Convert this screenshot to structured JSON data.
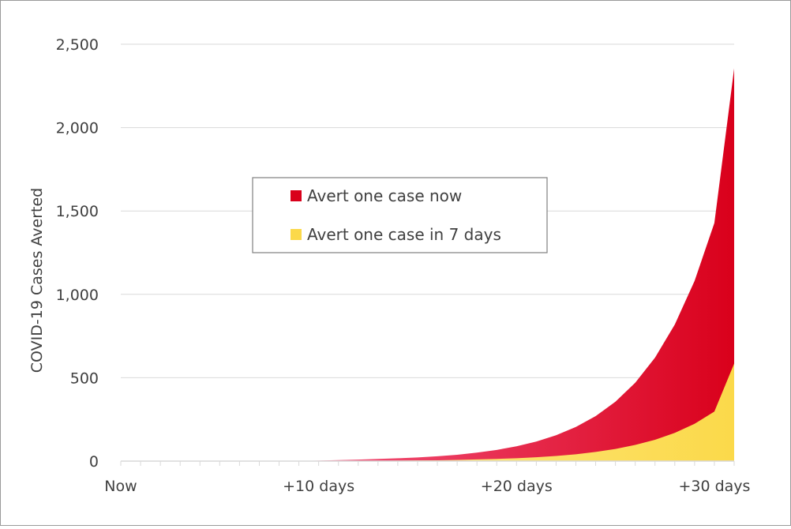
{
  "chart_data": {
    "type": "area",
    "ylabel": "COVID-19 Cases Averted",
    "xlabel": "",
    "ylim": [
      0,
      2500
    ],
    "y_ticks": [
      "0",
      "500",
      "1,000",
      "1,500",
      "2,000",
      "2,500"
    ],
    "y_tick_values": [
      0,
      500,
      1000,
      1500,
      2000,
      2500
    ],
    "x_ticks": [
      "Now",
      "+10 days",
      "+20 days",
      "+30 days"
    ],
    "x_tick_values": [
      0,
      10,
      20,
      30
    ],
    "xlim": [
      0,
      31
    ],
    "grid": "horizontal",
    "legend_position": "center",
    "series": [
      {
        "name": "Avert one case now",
        "color": "#d9001b",
        "color_light": "#ff7aa8",
        "x": [
          0,
          1,
          2,
          3,
          4,
          5,
          6,
          7,
          8,
          9,
          10,
          11,
          12,
          13,
          14,
          15,
          16,
          17,
          18,
          19,
          20,
          21,
          22,
          23,
          24,
          25,
          26,
          27,
          28,
          29,
          30,
          31
        ],
        "values": [
          0,
          0,
          0,
          0,
          0,
          0,
          0,
          0,
          0,
          1,
          3,
          6,
          9,
          13,
          17,
          22,
          29,
          38,
          51,
          67,
          89,
          117,
          155,
          205,
          270,
          356,
          470,
          620,
          819,
          1081,
          1428,
          2355
        ]
      },
      {
        "name": "Avert one case in 7 days",
        "color": "#fbd94a",
        "color_light": "#fff2a8",
        "x": [
          0,
          1,
          2,
          3,
          4,
          5,
          6,
          7,
          8,
          9,
          10,
          11,
          12,
          13,
          14,
          15,
          16,
          17,
          18,
          19,
          20,
          21,
          22,
          23,
          24,
          25,
          26,
          27,
          28,
          29,
          30,
          31
        ],
        "values": [
          0,
          0,
          0,
          0,
          0,
          0,
          0,
          0,
          0,
          0,
          0,
          1,
          1,
          2,
          3,
          4,
          5,
          7,
          10,
          13,
          17,
          23,
          31,
          41,
          55,
          73,
          97,
          128,
          169,
          224,
          297,
          585
        ]
      }
    ]
  }
}
